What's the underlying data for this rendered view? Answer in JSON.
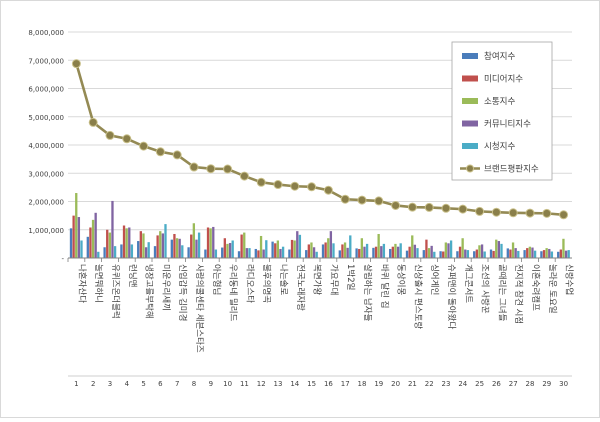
{
  "chart_data": {
    "type": "bar",
    "title": "",
    "xlabel": "",
    "ylabel": "",
    "ylim": [
      0,
      8000000
    ],
    "y_ticks": [
      0,
      1000000,
      2000000,
      3000000,
      4000000,
      5000000,
      6000000,
      7000000,
      8000000
    ],
    "y_tick_labels": [
      "-",
      "1,000,000",
      "2,000,000",
      "3,000,000",
      "4,000,000",
      "5,000,000",
      "6,000,000",
      "7,000,000",
      "8,000,000"
    ],
    "grid": "horizontal",
    "legend_position": "top-right",
    "x_index_labels": [
      "1",
      "2",
      "3",
      "4",
      "5",
      "6",
      "7",
      "8",
      "9",
      "10",
      "11",
      "12",
      "13",
      "14",
      "15",
      "16",
      "17",
      "18",
      "19",
      "20",
      "21",
      "22",
      "23",
      "24",
      "25",
      "26",
      "27",
      "28",
      "29",
      "30"
    ],
    "categories": [
      "나혼자산다",
      "놀면뭐하니",
      "유퀴즈온더블럭",
      "런닝맨",
      "냉장고를부탁해",
      "미운우리새끼",
      "신입갑득 김미경",
      "사랑의콜센타 세븐스타즈",
      "아는형님",
      "우리동네 밀리드",
      "라디오스타",
      "불후의명곡",
      "나는솔로",
      "전국노래자랑",
      "복면가왕",
      "가요무대",
      "1박2일",
      "살림하는 남자들",
      "바퀴 달린 집",
      "동상이몽",
      "신상출시 편스토랑",
      "싱어게인",
      "슈퍼맨이 돌아왔다",
      "개그콘서트",
      "조선의 사랑꾼",
      "골때리는 그녀들",
      "전지적 참견 시점",
      "이혼숙려캠프",
      "놀라운 토요일",
      "신랑수업"
    ],
    "series": [
      {
        "name": "참여지수",
        "type": "bar",
        "color": "#4a7dbb",
        "values": [
          1050000,
          750000,
          380000,
          480000,
          600000,
          420000,
          650000,
          380000,
          300000,
          370000,
          240000,
          320000,
          580000,
          300000,
          280000,
          480000,
          270000,
          340000,
          360000,
          320000,
          260000,
          280000,
          240000,
          240000,
          240000,
          300000,
          340000,
          280000,
          240000,
          220000
        ]
      },
      {
        "name": "미디어지수",
        "type": "bar",
        "color": "#c0504d",
        "values": [
          1500000,
          1080000,
          1000000,
          1150000,
          950000,
          800000,
          850000,
          830000,
          1080000,
          700000,
          830000,
          270000,
          520000,
          640000,
          480000,
          550000,
          480000,
          320000,
          400000,
          400000,
          400000,
          650000,
          230000,
          400000,
          300000,
          250000,
          300000,
          350000,
          280000,
          300000
        ]
      },
      {
        "name": "소통지수",
        "type": "bar",
        "color": "#9bbb59",
        "values": [
          2300000,
          1350000,
          900000,
          1050000,
          870000,
          950000,
          700000,
          1230000,
          1050000,
          500000,
          900000,
          780000,
          620000,
          620000,
          550000,
          700000,
          550000,
          700000,
          850000,
          500000,
          800000,
          350000,
          550000,
          700000,
          450000,
          650000,
          550000,
          400000,
          350000,
          680000
        ]
      },
      {
        "name": "커뮤니티지수",
        "type": "bar",
        "color": "#8064a2",
        "values": [
          1450000,
          1600000,
          2020000,
          1080000,
          380000,
          870000,
          680000,
          650000,
          1100000,
          530000,
          350000,
          300000,
          320000,
          950000,
          380000,
          950000,
          360000,
          400000,
          420000,
          400000,
          470000,
          430000,
          520000,
          300000,
          480000,
          600000,
          350000,
          370000,
          320000,
          260000
        ]
      },
      {
        "name": "시청지수",
        "type": "bar",
        "color": "#4bacc6",
        "values": [
          620000,
          220000,
          420000,
          480000,
          560000,
          1200000,
          450000,
          900000,
          300000,
          620000,
          350000,
          630000,
          400000,
          820000,
          220000,
          520000,
          800000,
          500000,
          500000,
          520000,
          350000,
          220000,
          620000,
          280000,
          230000,
          500000,
          250000,
          260000,
          230000,
          280000
        ]
      },
      {
        "name": "브랜드평판지수",
        "type": "line",
        "color": "#948a54",
        "values": [
          6880000,
          4800000,
          4340000,
          4220000,
          3960000,
          3760000,
          3650000,
          3220000,
          3160000,
          3150000,
          2900000,
          2680000,
          2600000,
          2540000,
          2520000,
          2400000,
          2080000,
          2050000,
          2020000,
          1860000,
          1800000,
          1790000,
          1760000,
          1730000,
          1650000,
          1620000,
          1600000,
          1590000,
          1580000,
          1530000
        ]
      }
    ]
  }
}
